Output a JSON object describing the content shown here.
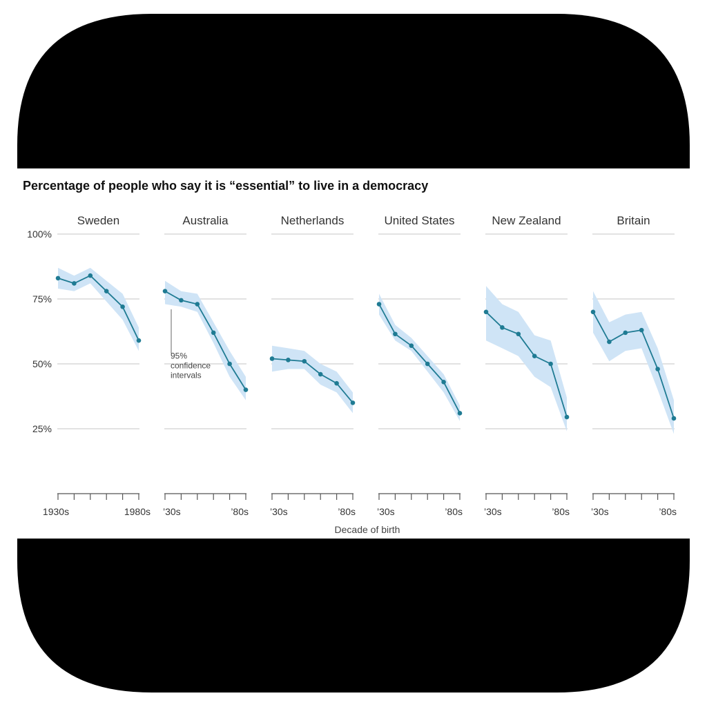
{
  "colors": {
    "line": "#1f7b93",
    "band": "#cfe4f6",
    "grid": "#d9d9d9",
    "frame": "#000000",
    "text": "#333333"
  },
  "chart_data": {
    "type": "line",
    "title": "Percentage of people who say it is “essential” to live in a democracy",
    "xlabel": "Decade of birth",
    "ylabel": "",
    "ylim": [
      0,
      100
    ],
    "yticks": [
      25,
      50,
      75,
      100
    ],
    "ytick_labels": [
      "25%",
      "50%",
      "75%",
      "100%"
    ],
    "x": [
      1930,
      1940,
      1950,
      1960,
      1970,
      1980
    ],
    "first_panel_xtick_labels": [
      "1930s",
      "1980s"
    ],
    "other_panel_xtick_labels": [
      "’30s",
      "’80s"
    ],
    "annotation": {
      "panel": "Australia",
      "lines": [
        "95%",
        "confidence",
        "intervals"
      ]
    },
    "series": [
      {
        "name": "Sweden",
        "values": [
          83,
          81,
          84,
          78,
          72,
          59
        ],
        "lower": [
          79,
          78,
          81,
          74,
          67,
          55
        ],
        "upper": [
          87,
          84,
          87,
          82,
          77,
          64
        ]
      },
      {
        "name": "Australia",
        "values": [
          78,
          74.5,
          73,
          62,
          50,
          40
        ],
        "lower": [
          73,
          72,
          70,
          58,
          45,
          36
        ],
        "upper": [
          82,
          78,
          77,
          66,
          55,
          45
        ]
      },
      {
        "name": "Netherlands",
        "values": [
          52,
          51.5,
          51,
          46,
          42.5,
          35
        ],
        "lower": [
          47,
          48,
          48,
          42,
          39,
          31
        ],
        "upper": [
          57,
          56,
          55,
          50,
          47,
          39
        ]
      },
      {
        "name": "United States",
        "values": [
          73,
          61.5,
          57,
          50,
          43,
          31
        ],
        "lower": [
          69,
          59,
          55,
          47,
          39,
          28
        ],
        "upper": [
          77,
          65,
          60,
          53,
          46,
          34
        ]
      },
      {
        "name": "New Zealand",
        "values": [
          70,
          64,
          61.5,
          53,
          50,
          29.5
        ],
        "lower": [
          59,
          56,
          53,
          45,
          41,
          24
        ],
        "upper": [
          80,
          73,
          70,
          61,
          59,
          37
        ]
      },
      {
        "name": "Britain",
        "values": [
          70,
          58.5,
          62,
          63,
          48,
          29
        ],
        "lower": [
          62,
          51,
          55,
          56,
          40,
          23
        ],
        "upper": [
          78,
          66,
          69,
          70,
          56,
          36
        ]
      }
    ]
  }
}
